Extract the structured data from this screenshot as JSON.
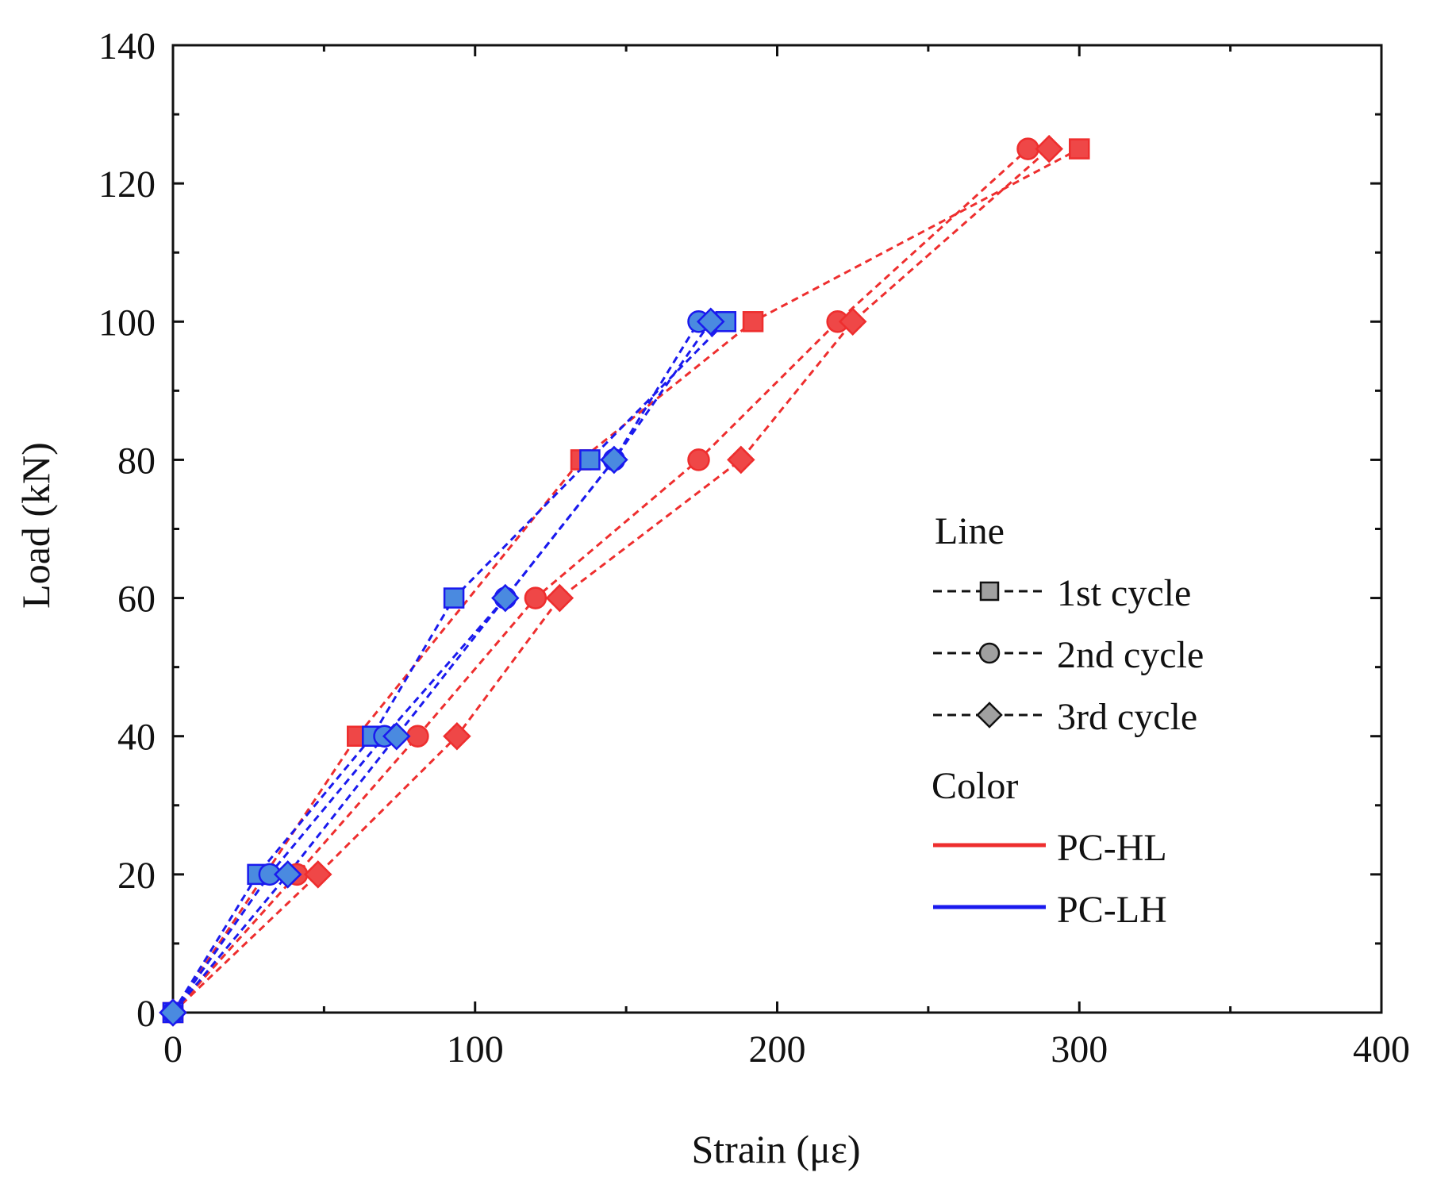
{
  "chart_data": {
    "type": "line",
    "title": "",
    "xlabel": "Strain (με)",
    "ylabel": "Load (kN)",
    "xlim": [
      0,
      400
    ],
    "ylim": [
      0,
      140
    ],
    "xticks": [
      0,
      100,
      200,
      300,
      400
    ],
    "yticks": [
      0,
      20,
      40,
      60,
      80,
      100,
      120,
      140
    ],
    "xtick_labels": [
      "0",
      "100",
      "200",
      "300",
      "400"
    ],
    "ytick_labels": [
      "0",
      "20",
      "40",
      "60",
      "80",
      "100",
      "120",
      "140"
    ],
    "grid": false,
    "legend": {
      "position": "right",
      "line_heading": "Line",
      "line_entries": [
        {
          "label": "1st cycle",
          "marker": "square"
        },
        {
          "label": "2nd cycle",
          "marker": "circle"
        },
        {
          "label": "3rd cycle",
          "marker": "diamond"
        }
      ],
      "color_heading": "Color",
      "color_entries": [
        {
          "label": "PC-HL",
          "color": "#ee2e2e"
        },
        {
          "label": "PC-LH",
          "color": "#1a1aee"
        }
      ]
    },
    "colors": {
      "hl_line": "#ee2e2e",
      "hl_marker_fill": "#ef4747",
      "lh_line": "#1a1aee",
      "lh_marker_fill": "#4a8ae0",
      "legend_marker_fill": "#a0a0a0"
    },
    "series": [
      {
        "name": "PC-HL 1st cycle",
        "group": "PC-HL",
        "marker": "square",
        "x": [
          0,
          61,
          135,
          192,
          300
        ],
        "y": [
          0,
          40,
          80,
          100,
          125
        ]
      },
      {
        "name": "PC-HL 2nd cycle",
        "group": "PC-HL",
        "marker": "circle",
        "x": [
          0,
          41,
          81,
          120,
          174,
          220,
          283
        ],
        "y": [
          0,
          20,
          40,
          60,
          80,
          100,
          125
        ]
      },
      {
        "name": "PC-HL 3rd cycle",
        "group": "PC-HL",
        "marker": "diamond",
        "x": [
          0,
          48,
          94,
          128,
          188,
          225,
          290
        ],
        "y": [
          0,
          20,
          40,
          60,
          80,
          100,
          125
        ]
      },
      {
        "name": "PC-LH 1st cycle",
        "group": "PC-LH",
        "marker": "square",
        "x": [
          0,
          28,
          66,
          93,
          138,
          183
        ],
        "y": [
          0,
          20,
          40,
          60,
          80,
          100
        ]
      },
      {
        "name": "PC-LH 2nd cycle",
        "group": "PC-LH",
        "marker": "circle",
        "x": [
          0,
          32,
          70,
          110,
          146,
          174
        ],
        "y": [
          0,
          20,
          40,
          60,
          80,
          100
        ]
      },
      {
        "name": "PC-LH 3rd cycle",
        "group": "PC-LH",
        "marker": "diamond",
        "x": [
          0,
          38,
          74,
          110,
          146,
          178
        ],
        "y": [
          0,
          20,
          40,
          60,
          80,
          100
        ]
      }
    ]
  }
}
